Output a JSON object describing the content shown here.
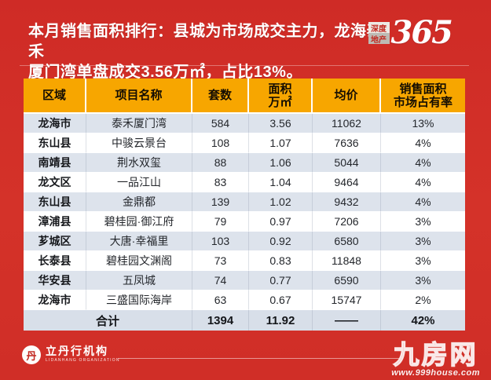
{
  "colors": {
    "background_red": "#d43229",
    "table_header_orange": "#f7a600",
    "row_alt_blue_gray": "#dde3ec",
    "total_row_bg": "#d8dfe9",
    "headline_text": "#ffffff"
  },
  "header": {
    "title_line1": "本月销售面积排行：县城为市场成交主力，龙海泰禾",
    "title_line2": "厦门湾单盘成交3.56万㎡，占比13%。",
    "brand": {
      "box_top": "深度",
      "box_bottom": "地产",
      "number": "365"
    }
  },
  "chart_data": {
    "type": "table",
    "title": "本月销售面积排行",
    "columns": [
      {
        "label": "区域"
      },
      {
        "label": "项目名称"
      },
      {
        "label": "套数"
      },
      {
        "label": "面积",
        "label2": "万㎡"
      },
      {
        "label": "均价"
      },
      {
        "label": "销售面积",
        "label2": "市场占有率"
      }
    ],
    "rows": [
      {
        "region": "龙海市",
        "project": "泰禾厦门湾",
        "units": "584",
        "area": "3.56",
        "price": "11062",
        "share": "13%"
      },
      {
        "region": "东山县",
        "project": "中骏云景台",
        "units": "108",
        "area": "1.07",
        "price": "7636",
        "share": "4%"
      },
      {
        "region": "南靖县",
        "project": "荆水双玺",
        "units": "88",
        "area": "1.06",
        "price": "5044",
        "share": "4%"
      },
      {
        "region": "龙文区",
        "project": "一品江山",
        "units": "83",
        "area": "1.04",
        "price": "9464",
        "share": "4%"
      },
      {
        "region": "东山县",
        "project": "金鼎都",
        "units": "139",
        "area": "1.02",
        "price": "9432",
        "share": "4%"
      },
      {
        "region": "漳浦县",
        "project": "碧桂园·御江府",
        "units": "79",
        "area": "0.97",
        "price": "7206",
        "share": "3%"
      },
      {
        "region": "芗城区",
        "project": "大唐·幸福里",
        "units": "103",
        "area": "0.92",
        "price": "6580",
        "share": "3%"
      },
      {
        "region": "长泰县",
        "project": "碧桂园文渊阁",
        "units": "73",
        "area": "0.83",
        "price": "11848",
        "share": "3%"
      },
      {
        "region": "华安县",
        "project": "五凤城",
        "units": "74",
        "area": "0.77",
        "price": "6590",
        "share": "3%"
      },
      {
        "region": "龙海市",
        "project": "三盛国际海岸",
        "units": "63",
        "area": "0.67",
        "price": "15747",
        "share": "2%"
      }
    ],
    "total": {
      "label": "合计",
      "units": "1394",
      "area": "11.92",
      "price": "——",
      "share": "42%"
    }
  },
  "footer": {
    "agency_emblem_glyph": "丹",
    "agency_name": "立丹行机构",
    "agency_sub": "LIDANHANG ORGANIZATION",
    "watermark_name": "九房网",
    "watermark_url": "www.999house.com"
  }
}
